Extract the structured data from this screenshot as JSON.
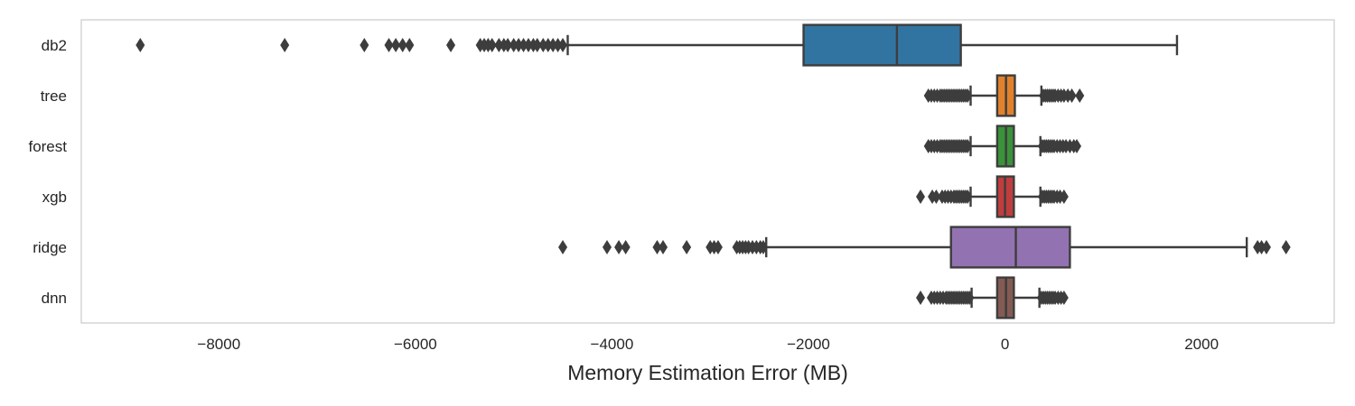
{
  "chart_data": {
    "type": "boxplot",
    "orientation": "horizontal",
    "title": "",
    "xlabel": "Memory Estimation Error (MB)",
    "ylabel": "",
    "xlim": [
      -9400,
      3350
    ],
    "xticks": [
      -8000,
      -6000,
      -4000,
      -2000,
      0,
      2000
    ],
    "xtick_labels": [
      "−8000",
      "−6000",
      "−4000",
      "−2000",
      "0",
      "2000"
    ],
    "grid": false,
    "categories": [
      "db2",
      "tree",
      "forest",
      "xgb",
      "ridge",
      "dnn"
    ],
    "series": [
      {
        "category": "db2",
        "color": "#3274a1",
        "whisker_low": -4450,
        "q1": -2050,
        "median": -1100,
        "q3": -450,
        "whisker_high": 1750,
        "outliers": [
          -8800,
          -7330,
          -6520,
          -6270,
          -6200,
          -6130,
          -6060,
          -5640,
          -5340,
          -5300,
          -5260,
          -5220,
          -5150,
          -5100,
          -5060,
          -5000,
          -4950,
          -4900,
          -4850,
          -4800,
          -4760,
          -4700,
          -4650,
          -4600,
          -4550,
          -4500
        ]
      },
      {
        "category": "tree",
        "color": "#e1812c",
        "whisker_low": -350,
        "q1": -80,
        "median": 10,
        "q3": 100,
        "whisker_high": 370,
        "outliers": [
          -780,
          -750,
          -720,
          -690,
          -660,
          -640,
          -620,
          -600,
          -580,
          -560,
          -540,
          -520,
          -500,
          -480,
          -460,
          -440,
          -420,
          -400,
          -380,
          390,
          410,
          430,
          450,
          470,
          490,
          510,
          540,
          570,
          600,
          640,
          680,
          760
        ]
      },
      {
        "category": "forest",
        "color": "#3a923a",
        "whisker_low": -350,
        "q1": -80,
        "median": 10,
        "q3": 90,
        "whisker_high": 360,
        "outliers": [
          -780,
          -750,
          -720,
          -690,
          -660,
          -640,
          -620,
          -600,
          -580,
          -560,
          -540,
          -520,
          -500,
          -480,
          -460,
          -440,
          -420,
          -400,
          -380,
          380,
          400,
          420,
          440,
          460,
          480,
          500,
          530,
          560,
          590,
          620,
          660,
          700,
          730
        ]
      },
      {
        "category": "xgb",
        "color": "#c03d3e",
        "whisker_low": -350,
        "q1": -80,
        "median": 0,
        "q3": 90,
        "whisker_high": 360,
        "outliers": [
          -860,
          -740,
          -700,
          -640,
          -610,
          -580,
          -550,
          -520,
          -500,
          -480,
          -460,
          -440,
          -420,
          -400,
          -380,
          380,
          400,
          420,
          440,
          460,
          480,
          500,
          530,
          560,
          600
        ]
      },
      {
        "category": "ridge",
        "color": "#9372b2",
        "whisker_low": -2430,
        "q1": -550,
        "median": 110,
        "q3": 660,
        "whisker_high": 2460,
        "outliers": [
          -4500,
          -4050,
          -3930,
          -3860,
          -3540,
          -3480,
          -3240,
          -3000,
          -2960,
          -2920,
          -2730,
          -2700,
          -2670,
          -2640,
          -2610,
          -2570,
          -2530,
          -2490,
          -2460,
          2570,
          2610,
          2660,
          2860
        ]
      },
      {
        "category": "dnn",
        "color": "#845b53",
        "whisker_low": -340,
        "q1": -80,
        "median": 10,
        "q3": 90,
        "whisker_high": 350,
        "outliers": [
          -860,
          -750,
          -720,
          -690,
          -660,
          -630,
          -600,
          -580,
          -560,
          -540,
          -520,
          -500,
          -480,
          -460,
          -440,
          -420,
          -400,
          -380,
          -360,
          370,
          390,
          410,
          430,
          450,
          470,
          490,
          510,
          540,
          570,
          600
        ]
      }
    ],
    "colors": {
      "edge": "#3d3d3d",
      "frame": "#cccccc",
      "text": "#262626"
    }
  }
}
